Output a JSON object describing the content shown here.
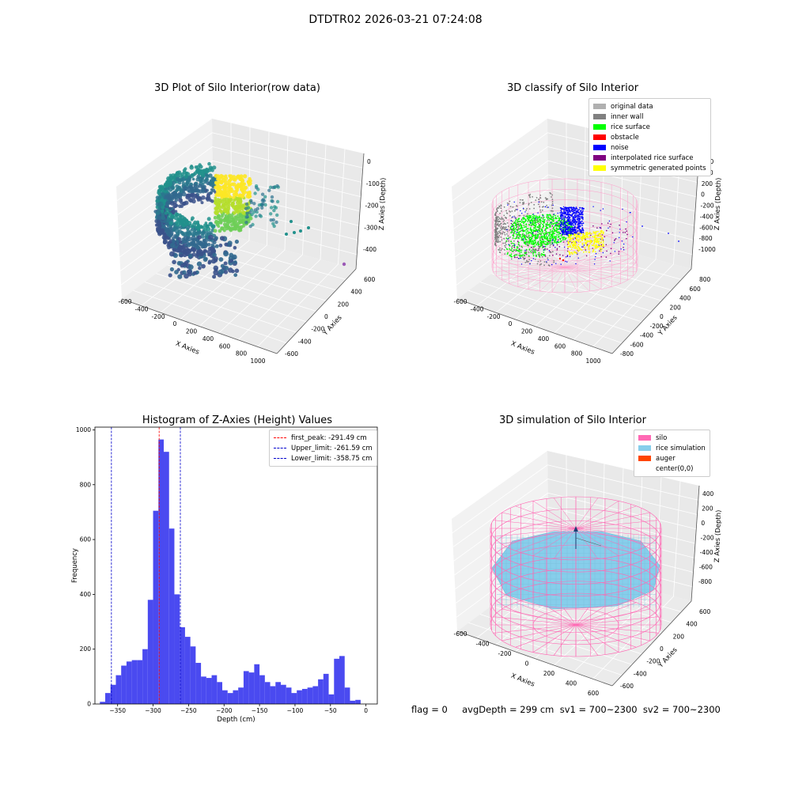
{
  "page_title": "DTDTR02 2026-03-21 07:24:08",
  "bottom_text": "flag = 0     avgDepth = 299 cm  sv1 = 700~2300  sv2 = 700~2300",
  "chart_data": [
    {
      "type": "scatter",
      "title": "3D Plot of Silo Interior(row data)",
      "xlabel": "X Axies",
      "ylabel": "Y Axies",
      "zlabel": "Z Axies (Depth)",
      "x_ticks": [
        "-600",
        "-400",
        "-200",
        "0",
        "200",
        "400",
        "600",
        "800",
        "1000"
      ],
      "y_ticks": [
        "-600",
        "-400",
        "-200",
        "0",
        "200",
        "400",
        "600"
      ],
      "z_ticks": [
        "-400",
        "-300",
        "-200",
        "-100",
        "0"
      ],
      "colormap": "viridis"
    },
    {
      "type": "scatter",
      "title": "3D classify of Silo Interior",
      "xlabel": "X Axies",
      "ylabel": "Y Axies",
      "zlabel": "Z Axies (Depth)",
      "x_ticks": [
        "-600",
        "-400",
        "-200",
        "0",
        "200",
        "400",
        "600",
        "800",
        "1000"
      ],
      "y_ticks": [
        "-800",
        "-600",
        "-400",
        "-200",
        "0",
        "200",
        "400",
        "600",
        "800"
      ],
      "z_ticks": [
        "-1000",
        "-800",
        "-600",
        "-400",
        "-200",
        "0",
        "200",
        "400",
        "600"
      ],
      "legend": [
        {
          "label": "original data",
          "color": "#b0b0b0"
        },
        {
          "label": "inner wall",
          "color": "#808080"
        },
        {
          "label": "rice surface",
          "color": "#00ff00"
        },
        {
          "label": "obstacle",
          "color": "#ff0000"
        },
        {
          "label": "noise",
          "color": "#0000ff"
        },
        {
          "label": "interpolated rice surface",
          "color": "#800080"
        },
        {
          "label": "symmetric generated points",
          "color": "#ffff00"
        }
      ]
    },
    {
      "type": "bar",
      "title": "Histogram of Z-Axies (Height) Values",
      "xlabel": "Depth (cm)",
      "ylabel": "Frequency",
      "xlim": [
        -382,
        16
      ],
      "ylim": [
        0,
        1010
      ],
      "x_ticks": [
        -350,
        -300,
        -250,
        -200,
        -150,
        -100,
        -50,
        0
      ],
      "y_ticks": [
        0,
        200,
        400,
        600,
        800,
        1000
      ],
      "bin_start": -375,
      "bin_width": 7.5,
      "values": [
        8,
        40,
        70,
        105,
        140,
        155,
        160,
        160,
        200,
        380,
        705,
        965,
        920,
        640,
        400,
        280,
        245,
        210,
        150,
        100,
        95,
        105,
        80,
        50,
        40,
        50,
        60,
        120,
        115,
        145,
        105,
        80,
        65,
        80,
        70,
        60,
        40,
        50,
        55,
        60,
        65,
        90,
        110,
        35,
        165,
        175,
        60,
        12,
        15
      ],
      "bar_color": "#4a4af0",
      "lines": [
        {
          "label": "first_peak: -291.49 cm",
          "x": -291.49,
          "color": "#ff0000"
        },
        {
          "label": "Upper_limit: -261.59 cm",
          "x": -261.59,
          "color": "#0000cc"
        },
        {
          "label": "Lower_limit: -358.75 cm",
          "x": -358.75,
          "color": "#0000cc"
        }
      ]
    },
    {
      "type": "scatter",
      "title": "3D simulation of Silo Interior",
      "xlabel": "X Axies",
      "ylabel": "Y Axies",
      "zlabel": "Z Axies (Depth)",
      "x_ticks": [
        "-600",
        "-400",
        "-200",
        "0",
        "200",
        "400",
        "600"
      ],
      "y_ticks": [
        "-600",
        "-400",
        "-200",
        "0",
        "200",
        "400",
        "600"
      ],
      "z_ticks": [
        "-800",
        "-600",
        "-400",
        "-200",
        "0",
        "200",
        "400"
      ],
      "legend": [
        {
          "label": "silo",
          "color": "#ff69b4"
        },
        {
          "label": "rice simulation",
          "color": "#87ceeb"
        },
        {
          "label": "auger",
          "color": "#ff4500"
        },
        {
          "label": "center(0,0)",
          "color": "#ffffff"
        }
      ]
    }
  ]
}
